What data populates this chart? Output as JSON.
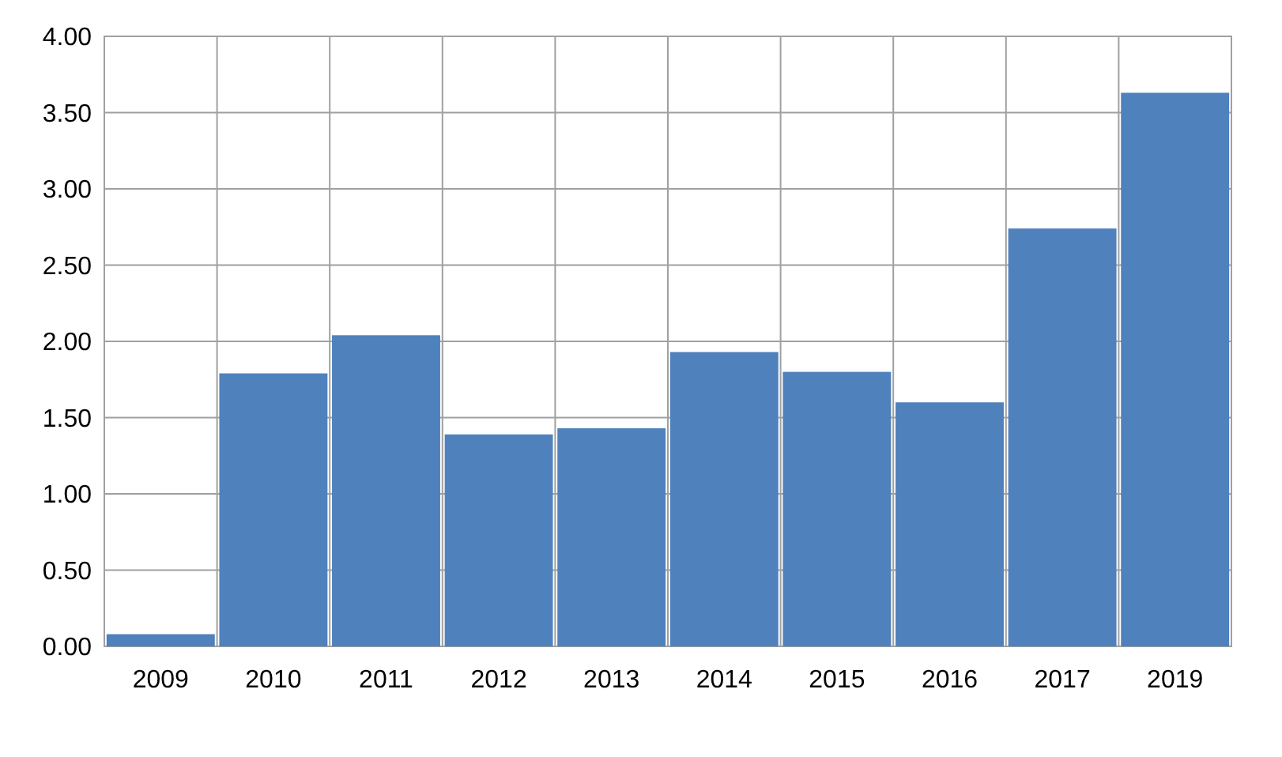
{
  "chart_data": {
    "type": "bar",
    "categories": [
      "2009",
      "2010",
      "2011",
      "2012",
      "2013",
      "2014",
      "2015",
      "2016",
      "2017",
      "2019"
    ],
    "values": [
      0.08,
      1.79,
      2.04,
      1.39,
      1.43,
      1.93,
      1.8,
      1.6,
      2.74,
      3.63
    ],
    "color": "#4f81bd",
    "ylim": [
      0,
      4
    ],
    "yticks": [
      {
        "value": 0,
        "label": "0.00"
      },
      {
        "value": 0.5,
        "label": "0.50"
      },
      {
        "value": 1,
        "label": "1.00"
      },
      {
        "value": 1.5,
        "label": "1.50"
      },
      {
        "value": 2,
        "label": "2.00"
      },
      {
        "value": 2.5,
        "label": "2.50"
      },
      {
        "value": 3,
        "label": "3.00"
      },
      {
        "value": 3.5,
        "label": "3.50"
      },
      {
        "value": 4,
        "label": "4.00"
      }
    ],
    "grid": true
  }
}
